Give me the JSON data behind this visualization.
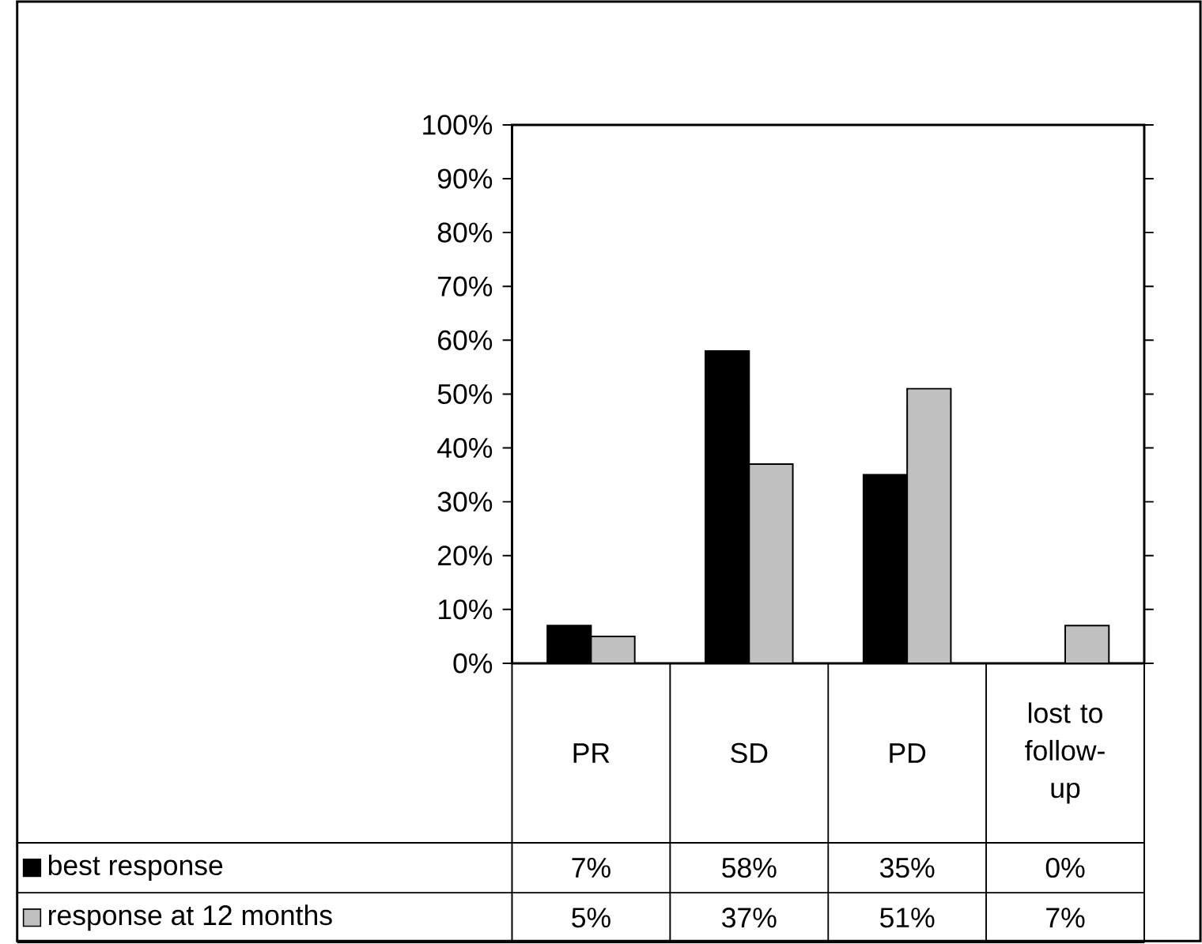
{
  "chart_data": {
    "type": "bar",
    "categories": [
      "PR",
      "SD",
      "PD",
      "lost to follow-up"
    ],
    "series": [
      {
        "name": "best response",
        "color": "#000000",
        "values": [
          7,
          58,
          35,
          0
        ],
        "value_labels": [
          "7%",
          "58%",
          "35%",
          "0%"
        ]
      },
      {
        "name": "response at 12 months",
        "color": "#c0c0c0",
        "values": [
          5,
          37,
          51,
          7
        ],
        "value_labels": [
          "5%",
          "37%",
          "51%",
          "7%"
        ]
      }
    ],
    "ylim": [
      0,
      100
    ],
    "yticks": [
      {
        "value": 0,
        "label": "0%"
      },
      {
        "value": 10,
        "label": "10%"
      },
      {
        "value": 20,
        "label": "20%"
      },
      {
        "value": 30,
        "label": "30%"
      },
      {
        "value": 40,
        "label": "40%"
      },
      {
        "value": 50,
        "label": "50%"
      },
      {
        "value": 60,
        "label": "60%"
      },
      {
        "value": 70,
        "label": "70%"
      },
      {
        "value": 80,
        "label": "80%"
      },
      {
        "value": 90,
        "label": "90%"
      },
      {
        "value": 100,
        "label": "100%"
      }
    ],
    "grid": false,
    "legend": "bottom"
  }
}
